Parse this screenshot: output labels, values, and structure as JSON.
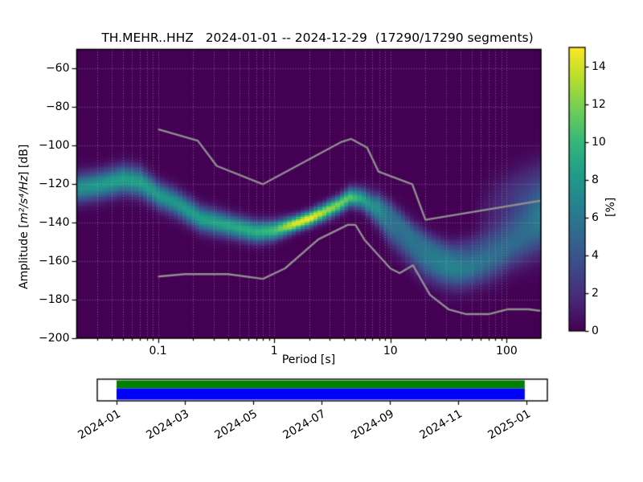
{
  "title": "TH.MEHR..HHZ   2024-01-01 -- 2024-12-29  (17290/17290 segments)",
  "axes": {
    "xlabel": "Period [s]",
    "ylabel_prefix": "Amplitude [",
    "ylabel_math": "m²/s⁴/Hz",
    "ylabel_suffix": "] [dB]",
    "x_scale": "log",
    "xlim": [
      0.02,
      197
    ],
    "ylim": [
      -200,
      -50
    ],
    "x_ticks": [
      0.1,
      1,
      10,
      100
    ],
    "x_tick_labels": [
      "0.1",
      "1",
      "10",
      "100"
    ],
    "y_ticks": [
      -60,
      -80,
      -100,
      -120,
      -140,
      -160,
      -180,
      -200
    ],
    "y_tick_labels": [
      "−60",
      "−80",
      "−100",
      "−120",
      "−140",
      "−160",
      "−180",
      "−200"
    ],
    "grid": true,
    "grid_color": "rgba(195,195,195,0.5)"
  },
  "colorbar": {
    "label": "[%]",
    "ticks": [
      0,
      2,
      4,
      6,
      8,
      10,
      12,
      14
    ],
    "tick_labels": [
      "0",
      "2",
      "4",
      "6",
      "8",
      "10",
      "12",
      "14"
    ],
    "vmin": 0,
    "vmax": 15,
    "colormap": "viridis",
    "stops": [
      "#440154",
      "#482878",
      "#3e4989",
      "#31688e",
      "#26828e",
      "#1f9e89",
      "#35b779",
      "#6ece58",
      "#b5de2b",
      "#fde725"
    ]
  },
  "timeline": {
    "tick_labels": [
      "2024-01",
      "2024-03",
      "2024-05",
      "2024-07",
      "2024-09",
      "2024-11",
      "2025-01"
    ],
    "months_span": 12,
    "coverage_start_month": 0,
    "coverage_end_month": 11.95,
    "data_color": "#008000",
    "ppsd_color": "#0000ff"
  },
  "chart_data": {
    "type": "heatmap",
    "title": "TH.MEHR..HHZ   2024-01-01 -- 2024-12-29  (17290/17290 segments)",
    "xlabel": "Period [s]",
    "ylabel": "Amplitude [m²/s⁴/Hz] [dB]",
    "value_label": "[%]",
    "x_scale": "log",
    "x_range": [
      0.02,
      197
    ],
    "y_range": [
      -200,
      -50
    ],
    "value_range": [
      0,
      15
    ],
    "db_bin_width": 1.0,
    "period_bins_per_decade": 26.6,
    "density_ridges": [
      {
        "name": "primary-mode",
        "points_pcsa": [
          [
            0.02,
            -122,
            5,
            7.5
          ],
          [
            0.03,
            -120.5,
            5,
            8
          ],
          [
            0.05,
            -117.5,
            5,
            8.5
          ],
          [
            0.07,
            -119,
            5,
            8.5
          ],
          [
            0.1,
            -125.5,
            4.6,
            8
          ],
          [
            0.14,
            -129.5,
            4.6,
            8
          ],
          [
            0.235,
            -138,
            4.4,
            8.5
          ],
          [
            0.44,
            -142,
            4,
            9
          ],
          [
            0.7,
            -144.7,
            3.8,
            9.5
          ],
          [
            1.0,
            -144,
            3.4,
            10.5
          ],
          [
            1.5,
            -140.5,
            2.7,
            14.5
          ],
          [
            2.0,
            -137.8,
            2.7,
            15
          ],
          [
            2.7,
            -134.3,
            2.9,
            13
          ],
          [
            3.5,
            -130.8,
            3.1,
            12
          ],
          [
            4.5,
            -126.7,
            3.3,
            11
          ],
          [
            5.7,
            -127.5,
            3.6,
            9
          ],
          [
            7.5,
            -132.9,
            5,
            7
          ],
          [
            10,
            -141.3,
            6.5,
            5.5
          ],
          [
            13,
            -148.2,
            7,
            5
          ],
          [
            16.8,
            -155.1,
            7,
            5.3
          ],
          [
            21,
            -159.3,
            7,
            5.8
          ],
          [
            28,
            -162.8,
            6.8,
            6.3
          ],
          [
            36,
            -164.2,
            6.6,
            6.5
          ],
          [
            48,
            -163.5,
            6.6,
            6
          ],
          [
            63,
            -160.7,
            7,
            5.5
          ],
          [
            85,
            -157.2,
            7.3,
            5
          ],
          [
            110,
            -153,
            7.6,
            4.5
          ],
          [
            150,
            -148.2,
            8.5,
            4.2
          ],
          [
            197,
            -143,
            9.5,
            4.5
          ]
        ]
      },
      {
        "name": "upper-sub-band",
        "points_pcsa": [
          [
            7,
            -127,
            3,
            1.5
          ],
          [
            10,
            -133,
            3.2,
            2.2
          ],
          [
            15,
            -144,
            4,
            2.4
          ],
          [
            22,
            -151,
            4,
            2.4
          ],
          [
            32,
            -155,
            4.2,
            2
          ],
          [
            45,
            -153,
            4.5,
            1.6
          ],
          [
            60,
            -150,
            5,
            1.6
          ],
          [
            90,
            -145,
            6,
            1.8
          ],
          [
            140,
            -138,
            7,
            2
          ],
          [
            197,
            -133,
            8,
            2.2
          ]
        ]
      },
      {
        "name": "long-period-cloud",
        "points_pcsa": [
          [
            55,
            -135,
            8,
            0.4
          ],
          [
            80,
            -130,
            9,
            1.5
          ],
          [
            120,
            -126,
            9.5,
            2.5
          ],
          [
            197,
            -122,
            10,
            3
          ]
        ]
      }
    ],
    "noise_models": {
      "color": "#8f8f8f",
      "nhnm": [
        [
          0.1,
          -91.5
        ],
        [
          0.22,
          -97.4
        ],
        [
          0.32,
          -110.5
        ],
        [
          0.8,
          -120.0
        ],
        [
          3.8,
          -98.0
        ],
        [
          4.6,
          -96.5
        ],
        [
          6.3,
          -101.0
        ],
        [
          7.9,
          -113.5
        ],
        [
          15.4,
          -120.0
        ],
        [
          20.0,
          -138.5
        ],
        [
          354.8,
          -126.0
        ]
      ],
      "nlnm": [
        [
          0.1,
          -168.0
        ],
        [
          0.17,
          -166.7
        ],
        [
          0.4,
          -166.7
        ],
        [
          0.8,
          -169.2
        ],
        [
          1.24,
          -163.7
        ],
        [
          2.4,
          -148.6
        ],
        [
          4.3,
          -141.1
        ],
        [
          5.0,
          -141.1
        ],
        [
          6.0,
          -149.0
        ],
        [
          10.0,
          -163.8
        ],
        [
          12.0,
          -166.2
        ],
        [
          15.6,
          -162.1
        ],
        [
          21.9,
          -177.5
        ],
        [
          31.6,
          -185.0
        ],
        [
          45.0,
          -187.5
        ],
        [
          70.0,
          -187.5
        ],
        [
          101.0,
          -185.0
        ],
        [
          154.0,
          -185.0
        ],
        [
          328.0,
          -187.5
        ]
      ]
    }
  }
}
